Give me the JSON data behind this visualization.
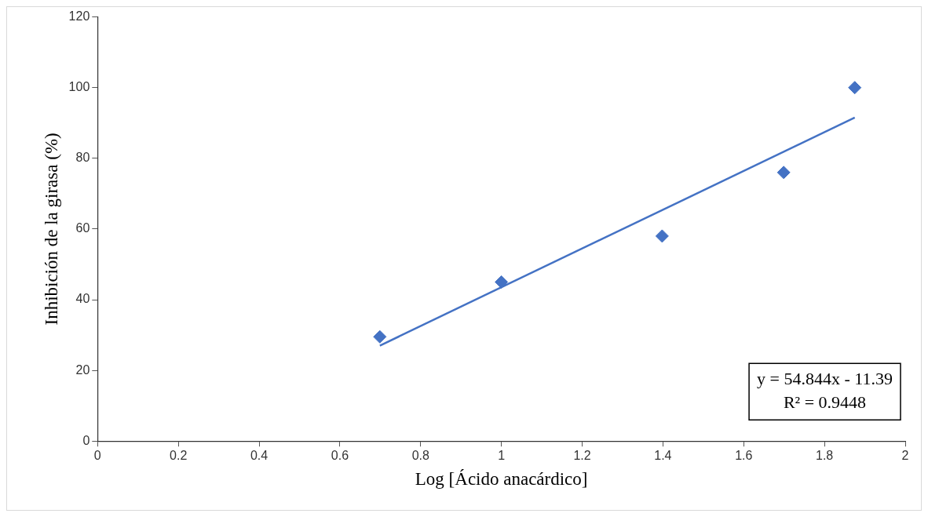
{
  "chart_data": {
    "type": "scatter",
    "xlabel": "Log [Ácido anacárdico]",
    "ylabel": "Inhibición de la girasa (%)",
    "xlim": [
      0,
      2
    ],
    "xticks": [
      0,
      0.2,
      0.4,
      0.6,
      0.8,
      1,
      1.2,
      1.4,
      1.6,
      1.8,
      2
    ],
    "ylim": [
      0,
      120
    ],
    "yticks": [
      0,
      20,
      40,
      60,
      80,
      100,
      120
    ],
    "grid": false,
    "legend": false,
    "series": [
      {
        "marker": "diamond",
        "color": "#4472c4",
        "x": [
          0.699,
          1.0,
          1.398,
          1.699,
          1.875
        ],
        "values": [
          29.5,
          45,
          58,
          76,
          100
        ]
      },
      {
        "type": "line",
        "marker": "none",
        "color": "#4472c4",
        "x": [
          0.699,
          1.875
        ],
        "values": [
          27,
          91.5
        ]
      }
    ],
    "annotations": [
      "y = 54.844x - 11.39",
      "R² = 0.9448"
    ]
  }
}
